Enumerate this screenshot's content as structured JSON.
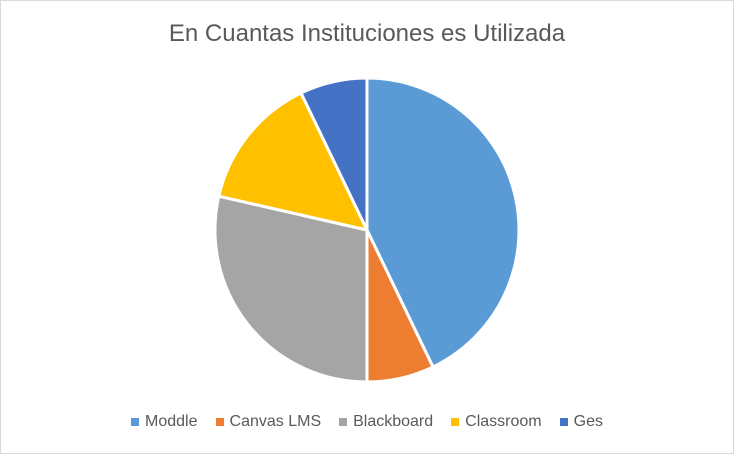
{
  "chart_data": {
    "type": "pie",
    "title": "En Cuantas Instituciones es Utilizada",
    "categories": [
      "Moddle",
      "Canvas LMS",
      "Blackboard",
      "Classroom",
      "Ges"
    ],
    "values": [
      6,
      1,
      4,
      2,
      1
    ],
    "colors": [
      "#5b9bd5",
      "#ed7d31",
      "#a5a5a5",
      "#ffc000",
      "#4472c4"
    ],
    "legend_position": "bottom",
    "start_angle_deg": 0,
    "direction": "clockwise"
  }
}
